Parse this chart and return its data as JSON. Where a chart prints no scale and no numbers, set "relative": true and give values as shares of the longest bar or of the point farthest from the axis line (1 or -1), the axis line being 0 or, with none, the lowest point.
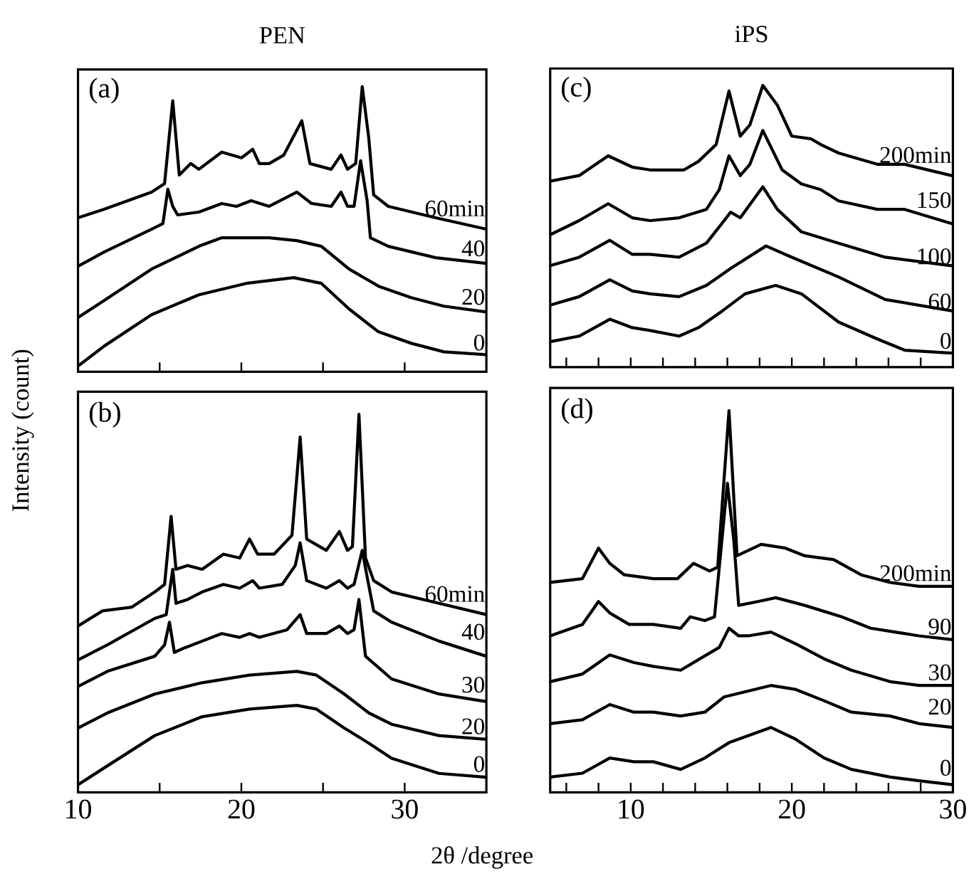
{
  "chart_data": [
    {
      "type": "line",
      "relative": true,
      "title": "PEN",
      "ylabel": "Intensity (count)",
      "annotations": [
        "(a)"
      ],
      "xlim": [
        10,
        35
      ],
      "xticks": [
        {
          "value": 15,
          "label": null
        },
        {
          "value": 20,
          "label": null
        },
        {
          "value": 25,
          "label": null
        },
        {
          "value": 30,
          "label": null
        }
      ],
      "tick_labels": false,
      "series": [
        {
          "name": "0",
          "color": "#000000",
          "x": [
            10,
            11.6,
            14.5,
            17.4,
            20.3,
            23.2,
            24.9,
            26.6,
            28.4,
            30.4,
            32.4,
            35
          ],
          "values": [
            0.02,
            0.09,
            0.2,
            0.27,
            0.31,
            0.33,
            0.31,
            0.22,
            0.14,
            0.1,
            0.07,
            0.06
          ]
        },
        {
          "name": "20",
          "color": "#000000",
          "x": [
            10,
            11.6,
            14.5,
            17.4,
            18.8,
            21.7,
            23.4,
            24.9,
            26.6,
            28.4,
            30.4,
            32.4,
            35
          ],
          "values": [
            0.19,
            0.25,
            0.36,
            0.44,
            0.47,
            0.47,
            0.46,
            0.44,
            0.36,
            0.3,
            0.26,
            0.23,
            0.21
          ]
        },
        {
          "name": "40",
          "color": "#000000",
          "x": [
            10,
            11.6,
            14.5,
            15.2,
            15.5,
            15.8,
            16.1,
            17.4,
            18.8,
            19.7,
            20.6,
            21.7,
            23.4,
            24.3,
            25.5,
            26.1,
            26.5,
            26.9,
            27.3,
            27.7,
            27.9,
            29.0,
            31.9,
            35
          ],
          "values": [
            0.37,
            0.42,
            0.5,
            0.52,
            0.64,
            0.58,
            0.55,
            0.56,
            0.59,
            0.58,
            0.6,
            0.58,
            0.63,
            0.59,
            0.58,
            0.63,
            0.58,
            0.58,
            0.74,
            0.6,
            0.47,
            0.44,
            0.4,
            0.38
          ]
        },
        {
          "name": "60min",
          "color": "#000000",
          "x": [
            10,
            11.6,
            14.5,
            15.3,
            15.8,
            16.2,
            16.9,
            17.4,
            18.8,
            20.0,
            20.7,
            21.1,
            21.7,
            22.6,
            23.7,
            24.2,
            25.5,
            26.1,
            26.5,
            27.0,
            27.4,
            27.8,
            28.1,
            29.0,
            31.9,
            35
          ],
          "values": [
            0.54,
            0.57,
            0.63,
            0.66,
            0.95,
            0.69,
            0.73,
            0.71,
            0.77,
            0.75,
            0.78,
            0.73,
            0.73,
            0.76,
            0.88,
            0.73,
            0.71,
            0.76,
            0.71,
            0.73,
            1.0,
            0.82,
            0.62,
            0.58,
            0.54,
            0.5
          ]
        }
      ]
    },
    {
      "type": "line",
      "relative": true,
      "xlabel": "2θ /degree",
      "annotations": [
        "(b)"
      ],
      "xlim": [
        10,
        35
      ],
      "xticks": [
        10,
        {
          "value": 15,
          "label": null
        },
        20,
        {
          "value": 25,
          "label": null
        },
        30
      ],
      "tick_labels": "x",
      "series": [
        {
          "name": "0",
          "color": "#000000",
          "x": [
            10,
            11.8,
            14.7,
            17.6,
            20.5,
            23.4,
            24.6,
            26.3,
            27.8,
            29.2,
            32.1,
            35
          ],
          "values": [
            0.02,
            0.07,
            0.15,
            0.2,
            0.22,
            0.23,
            0.22,
            0.17,
            0.13,
            0.09,
            0.05,
            0.04
          ]
        },
        {
          "name": "20",
          "color": "#000000",
          "x": [
            10,
            11.8,
            14.7,
            17.6,
            20.5,
            23.4,
            24.6,
            26.3,
            27.8,
            29.2,
            32.1,
            35
          ],
          "values": [
            0.17,
            0.21,
            0.26,
            0.29,
            0.31,
            0.32,
            0.31,
            0.26,
            0.21,
            0.18,
            0.15,
            0.14
          ]
        },
        {
          "name": "30",
          "color": "#000000",
          "x": [
            10,
            11.8,
            14.7,
            15.3,
            15.6,
            15.9,
            16.4,
            17.6,
            18.8,
            19.9,
            20.5,
            21.1,
            22.8,
            23.6,
            24.0,
            25.2,
            26.0,
            26.5,
            26.9,
            27.2,
            27.6,
            29.2,
            32.1,
            35
          ],
          "values": [
            0.28,
            0.32,
            0.36,
            0.39,
            0.45,
            0.37,
            0.38,
            0.4,
            0.42,
            0.41,
            0.42,
            0.41,
            0.43,
            0.47,
            0.42,
            0.42,
            0.44,
            0.42,
            0.43,
            0.51,
            0.36,
            0.3,
            0.26,
            0.24
          ]
        },
        {
          "name": "40",
          "color": "#000000",
          "x": [
            10,
            11.8,
            14.7,
            15.4,
            15.8,
            16.0,
            16.7,
            17.6,
            18.9,
            19.9,
            20.7,
            21.1,
            22.5,
            23.3,
            23.6,
            24.0,
            25.2,
            26.0,
            26.5,
            26.9,
            27.4,
            27.7,
            28.1,
            29.2,
            32.1,
            35
          ],
          "values": [
            0.35,
            0.39,
            0.46,
            0.47,
            0.59,
            0.5,
            0.51,
            0.53,
            0.55,
            0.54,
            0.56,
            0.54,
            0.55,
            0.6,
            0.66,
            0.56,
            0.54,
            0.56,
            0.54,
            0.55,
            0.64,
            0.57,
            0.48,
            0.45,
            0.4,
            0.36
          ]
        },
        {
          "name": "60min",
          "color": "#000000",
          "x": [
            10,
            11.5,
            13.3,
            14.7,
            15.3,
            15.7,
            16.0,
            16.7,
            17.6,
            18.9,
            19.9,
            20.5,
            21.0,
            22.0,
            23.1,
            23.6,
            24.0,
            25.2,
            26.0,
            26.5,
            26.8,
            27.2,
            27.6,
            28.1,
            29.2,
            32.1,
            35
          ],
          "values": [
            0.44,
            0.48,
            0.49,
            0.53,
            0.55,
            0.73,
            0.59,
            0.6,
            0.59,
            0.63,
            0.62,
            0.67,
            0.63,
            0.63,
            0.68,
            0.94,
            0.67,
            0.64,
            0.69,
            0.64,
            0.65,
            1.0,
            0.62,
            0.56,
            0.53,
            0.5,
            0.47
          ]
        }
      ]
    },
    {
      "type": "line",
      "relative": true,
      "title": "iPS",
      "annotations": [
        "(c)"
      ],
      "xlim": [
        5,
        30
      ],
      "xticks": [
        {
          "value": 6,
          "label": null
        },
        {
          "value": 8,
          "label": null
        },
        {
          "value": 10,
          "label": null
        },
        {
          "value": 12,
          "label": null
        },
        {
          "value": 14,
          "label": null
        },
        {
          "value": 16,
          "label": null
        },
        {
          "value": 18,
          "label": null
        },
        {
          "value": 20,
          "label": null
        },
        {
          "value": 22,
          "label": null
        },
        {
          "value": 24,
          "label": null
        },
        {
          "value": 26,
          "label": null
        },
        {
          "value": 28,
          "label": null
        }
      ],
      "tick_labels": false,
      "series": [
        {
          "name": "0",
          "color": "#000000",
          "x": [
            5,
            6.8,
            8.7,
            10.1,
            11.2,
            13.0,
            14.2,
            15.7,
            17.1,
            19.0,
            20.6,
            22.9,
            25.3,
            27.0,
            29.9
          ],
          "values": [
            0.09,
            0.11,
            0.17,
            0.14,
            0.13,
            0.11,
            0.14,
            0.2,
            0.26,
            0.29,
            0.26,
            0.16,
            0.1,
            0.06,
            0.05
          ]
        },
        {
          "name": "60",
          "color": "#000000",
          "x": [
            5,
            6.8,
            8.7,
            10.1,
            11.2,
            13.0,
            14.7,
            16.2,
            18.4,
            20.0,
            22.9,
            25.8,
            29.9
          ],
          "values": [
            0.22,
            0.25,
            0.31,
            0.27,
            0.26,
            0.25,
            0.29,
            0.35,
            0.43,
            0.39,
            0.32,
            0.24,
            0.2
          ]
        },
        {
          "name": "100",
          "color": "#000000",
          "x": [
            5,
            6.8,
            8.7,
            10.1,
            11.2,
            13.0,
            14.7,
            15.8,
            16.2,
            16.8,
            18.2,
            19.1,
            20.6,
            22.9,
            25.8,
            29.9
          ],
          "values": [
            0.36,
            0.39,
            0.45,
            0.4,
            0.4,
            0.39,
            0.44,
            0.52,
            0.55,
            0.53,
            0.64,
            0.56,
            0.48,
            0.44,
            0.39,
            0.36
          ]
        },
        {
          "name": "150",
          "color": "#000000",
          "x": [
            5,
            6.8,
            8.6,
            10.1,
            11.2,
            13.0,
            14.7,
            15.5,
            16.1,
            16.8,
            17.4,
            18.2,
            19.4,
            20.6,
            21.8,
            22.9,
            25.3,
            27.0,
            29.9
          ],
          "values": [
            0.47,
            0.52,
            0.58,
            0.53,
            0.52,
            0.53,
            0.56,
            0.63,
            0.75,
            0.68,
            0.72,
            0.84,
            0.7,
            0.65,
            0.63,
            0.59,
            0.56,
            0.56,
            0.51
          ]
        },
        {
          "name": "200min",
          "color": "#000000",
          "x": [
            5,
            6.8,
            8.6,
            10.1,
            11.2,
            13.3,
            14.2,
            15.3,
            16.1,
            16.8,
            17.4,
            18.2,
            19.1,
            20.0,
            21.2,
            21.8,
            22.9,
            25.3,
            27.0,
            29.9
          ],
          "values": [
            0.66,
            0.68,
            0.75,
            0.71,
            0.7,
            0.7,
            0.73,
            0.79,
            0.98,
            0.82,
            0.86,
            1.0,
            0.93,
            0.82,
            0.81,
            0.79,
            0.76,
            0.72,
            0.72,
            0.68
          ]
        }
      ]
    },
    {
      "type": "line",
      "relative": true,
      "annotations": [
        "(d)"
      ],
      "xlim": [
        5,
        30
      ],
      "xticks": [
        {
          "value": 6,
          "label": null
        },
        {
          "value": 8,
          "label": null
        },
        10,
        {
          "value": 12,
          "label": null
        },
        {
          "value": 14,
          "label": null
        },
        {
          "value": 16,
          "label": null
        },
        {
          "value": 18,
          "label": null
        },
        20,
        {
          "value": 22,
          "label": null
        },
        {
          "value": 24,
          "label": null
        },
        {
          "value": 26,
          "label": null
        },
        {
          "value": 28,
          "label": null
        },
        30
      ],
      "tick_labels": "x",
      "series": [
        {
          "name": "0",
          "color": "#000000",
          "x": [
            5,
            7.0,
            8.7,
            10.2,
            11.4,
            13.1,
            14.6,
            16.1,
            18.7,
            20.2,
            22.0,
            23.7,
            26.1,
            27.9,
            30
          ],
          "values": [
            0.04,
            0.05,
            0.09,
            0.08,
            0.08,
            0.06,
            0.09,
            0.13,
            0.17,
            0.14,
            0.09,
            0.06,
            0.04,
            0.03,
            0.02
          ]
        },
        {
          "name": "20",
          "color": "#000000",
          "x": [
            5,
            7.0,
            8.7,
            10.2,
            11.4,
            13.1,
            14.6,
            15.8,
            18.7,
            20.2,
            22.0,
            23.7,
            26.1,
            27.9,
            30
          ],
          "values": [
            0.18,
            0.19,
            0.23,
            0.21,
            0.21,
            0.2,
            0.21,
            0.25,
            0.28,
            0.27,
            0.24,
            0.21,
            0.2,
            0.18,
            0.17
          ]
        },
        {
          "name": "30",
          "color": "#000000",
          "x": [
            5,
            7.0,
            8.7,
            10.2,
            11.4,
            13.1,
            14.3,
            15.5,
            16.1,
            16.7,
            17.3,
            18.7,
            20.2,
            22.0,
            23.7,
            26.1,
            27.9,
            30
          ],
          "values": [
            0.29,
            0.31,
            0.36,
            0.34,
            0.33,
            0.32,
            0.35,
            0.38,
            0.43,
            0.41,
            0.41,
            0.42,
            0.39,
            0.35,
            0.32,
            0.29,
            0.28,
            0.28
          ]
        },
        {
          "name": "90",
          "color": "#000000",
          "x": [
            5,
            7.0,
            8.0,
            8.7,
            9.9,
            11.4,
            13.1,
            13.7,
            14.6,
            15.2,
            16.0,
            16.4,
            16.7,
            17.9,
            19.0,
            20.8,
            23.1,
            24.9,
            27.9,
            30
          ],
          "values": [
            0.41,
            0.44,
            0.5,
            0.47,
            0.44,
            0.44,
            0.43,
            0.46,
            0.45,
            0.46,
            0.81,
            0.66,
            0.49,
            0.5,
            0.51,
            0.49,
            0.46,
            0.43,
            0.41,
            0.4
          ]
        },
        {
          "name": "200min",
          "color": "#000000",
          "x": [
            5,
            7.0,
            8.0,
            8.7,
            9.6,
            11.4,
            12.9,
            13.9,
            14.9,
            15.4,
            16.1,
            16.6,
            18.1,
            19.6,
            20.8,
            22.6,
            24.3,
            26.1,
            27.9,
            30
          ],
          "values": [
            0.55,
            0.56,
            0.64,
            0.6,
            0.57,
            0.56,
            0.56,
            0.6,
            0.58,
            0.59,
            1.0,
            0.62,
            0.65,
            0.64,
            0.62,
            0.61,
            0.57,
            0.55,
            0.54,
            0.54
          ]
        }
      ]
    }
  ]
}
